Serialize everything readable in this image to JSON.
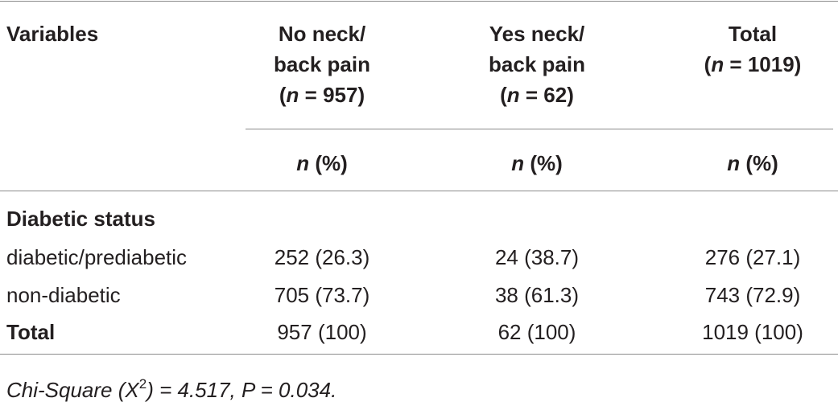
{
  "table": {
    "header": [
      {
        "lines": [
          [
            "Variables"
          ]
        ]
      },
      {
        "lines": [
          [
            "No neck/"
          ],
          [
            "back pain"
          ],
          [
            "(",
            {
              "italic": "n"
            },
            " = 957)"
          ]
        ]
      },
      {
        "lines": [
          [
            "Yes neck/"
          ],
          [
            "back pain"
          ],
          [
            "(",
            {
              "italic": "n"
            },
            " = 62)"
          ]
        ]
      },
      {
        "lines": [
          [
            "Total"
          ],
          [
            "(",
            {
              "italic": "n"
            },
            " = 1019)"
          ]
        ]
      }
    ],
    "subheader": [
      [
        {
          "italic": "n"
        },
        " (%)"
      ],
      [
        {
          "italic": "n"
        },
        " (%)"
      ],
      [
        {
          "italic": "n"
        },
        " (%)"
      ]
    ],
    "section": "Diabetic status",
    "rows": [
      [
        "diabetic/prediabetic",
        "252 (26.3)",
        "24 (38.7)",
        "276 (27.1)"
      ],
      [
        "non-diabetic",
        "705 (73.7)",
        "38 (61.3)",
        "743 (72.9)"
      ],
      [
        "Total",
        "957 (100)",
        "62 (100)",
        "1019 (100)"
      ]
    ]
  },
  "footnote": [
    "Chi-Square (X",
    {
      "sup": "2"
    },
    ") = 4.517, P = 0.034."
  ]
}
